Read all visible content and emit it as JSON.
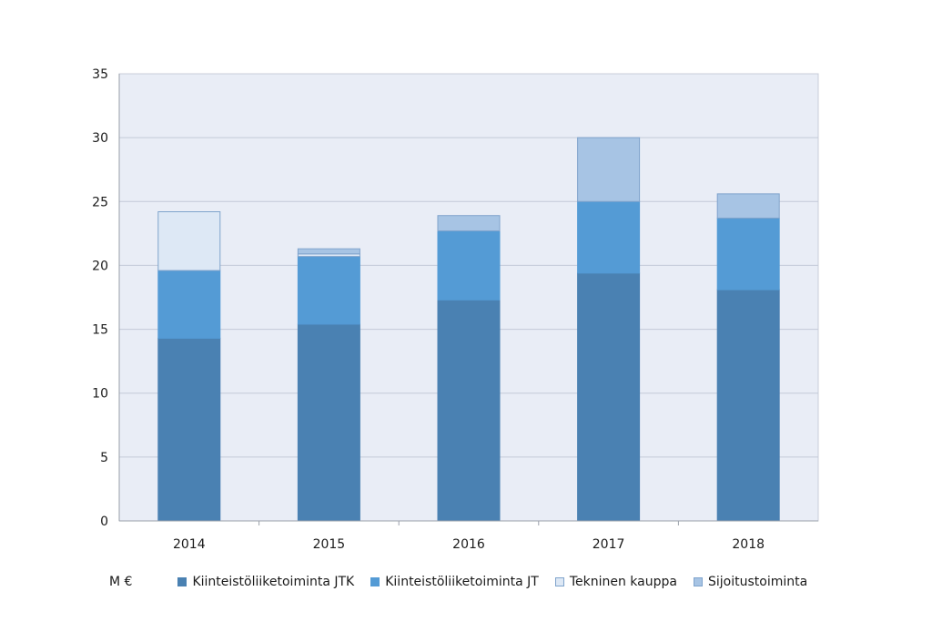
{
  "chart_data": {
    "type": "bar",
    "stacked": true,
    "categories": [
      "2014",
      "2015",
      "2016",
      "2017",
      "2018"
    ],
    "series": [
      {
        "name": "Kiinteistöliiketoiminta JTK",
        "values": [
          14.3,
          15.4,
          17.3,
          19.4,
          18.1
        ],
        "color": "#4a81b2",
        "stroke": "#4a81b2"
      },
      {
        "name": "Kiinteistöliiketoiminta JT",
        "values": [
          5.3,
          5.3,
          5.4,
          5.6,
          5.6
        ],
        "color": "#549bd5",
        "stroke": "#549bd5"
      },
      {
        "name": "Tekninen kauppa",
        "values": [
          4.6,
          0.2,
          0.0,
          0.0,
          0.0
        ],
        "color": "#dde8f5",
        "stroke": "#7fa3cc"
      },
      {
        "name": "Sijoitustoiminta",
        "values": [
          0.0,
          0.4,
          1.2,
          5.0,
          1.9
        ],
        "color": "#a7c4e4",
        "stroke": "#7fa3cc"
      }
    ],
    "ylim": [
      0,
      35
    ],
    "yticks": [
      0,
      5,
      10,
      15,
      20,
      25,
      30,
      35
    ],
    "grid": true,
    "legend_position": "bottom",
    "unit_label": "M €",
    "plot_background": "#e9edf6"
  }
}
